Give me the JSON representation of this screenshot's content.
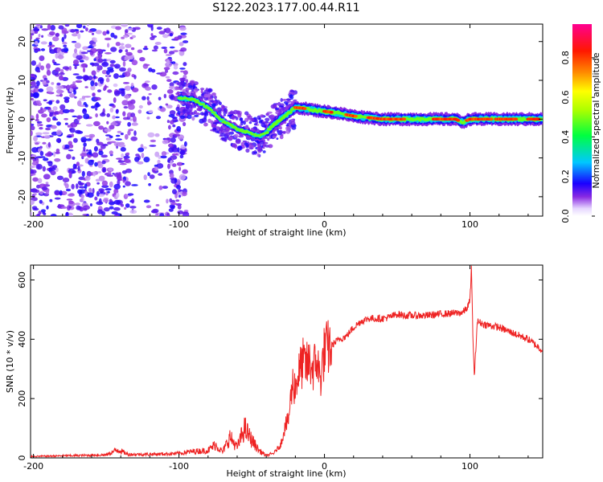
{
  "title": "S122.2023.177.00.44.R11",
  "chart_data": [
    {
      "type": "heatmap",
      "xlabel": "Height of straight line (km)",
      "ylabel": "Frequency (Hz)",
      "xlim": [
        -202,
        150
      ],
      "ylim": [
        -25,
        24.5
      ],
      "xticks": [
        -200,
        -100,
        0,
        100
      ],
      "yticks": [
        -20,
        -10,
        0,
        10,
        20
      ],
      "colorbar": {
        "label": "Normalized spectral amplitude",
        "range": [
          0,
          0.97
        ],
        "ticks": [
          "0.0",
          "0.2",
          "0.4",
          "0.6",
          "0.8"
        ]
      },
      "ridge": {
        "x": [
          -100,
          -90,
          -80,
          -70,
          -60,
          -52,
          -45,
          -40,
          -35,
          -30,
          -25,
          -20,
          -15,
          -10,
          -5,
          0,
          10,
          20,
          40,
          60,
          80,
          90,
          95,
          100,
          120,
          150
        ],
        "frequency_hz": [
          5.5,
          5.0,
          3.0,
          -0.5,
          -2.5,
          -3.5,
          -4.5,
          -3.5,
          -1.5,
          0,
          1.5,
          3,
          2.8,
          2.5,
          2.2,
          2,
          1.5,
          0.8,
          0,
          0,
          0,
          0,
          -0.8,
          0,
          0,
          0
        ]
      }
    },
    {
      "type": "line",
      "xlabel": "Height of straight line (km)",
      "ylabel": "SNR (10 * v/v)",
      "xlim": [
        -202,
        150
      ],
      "ylim": [
        0,
        650
      ],
      "xticks": [
        -200,
        -100,
        0,
        100
      ],
      "yticks": [
        0,
        200,
        400,
        600
      ],
      "color": "#ee2222",
      "series": [
        {
          "x": [
            -202,
            -190,
            -170,
            -150,
            -142,
            -135,
            -120,
            -100,
            -90,
            -80,
            -75,
            -70,
            -65,
            -60,
            -55,
            -50,
            -45,
            -40,
            -35,
            -30,
            -27,
            -25,
            -22,
            -20,
            -18,
            -15,
            -12,
            -10,
            -8,
            -5,
            -3,
            0,
            5,
            10,
            15,
            20,
            25,
            30,
            35,
            40,
            45,
            50,
            55,
            60,
            70,
            80,
            90,
            95,
            98,
            100,
            101,
            102,
            103,
            105,
            110,
            120,
            130,
            140,
            150
          ],
          "y": [
            5,
            6,
            8,
            10,
            28,
            12,
            12,
            15,
            22,
            25,
            45,
            20,
            70,
            35,
            100,
            60,
            25,
            8,
            15,
            45,
            110,
            120,
            250,
            240,
            280,
            320,
            310,
            320,
            300,
            330,
            260,
            360,
            380,
            400,
            410,
            440,
            460,
            470,
            470,
            470,
            475,
            485,
            480,
            480,
            480,
            485,
            488,
            490,
            505,
            530,
            640,
            420,
            270,
            460,
            450,
            440,
            420,
            400,
            362
          ]
        }
      ]
    }
  ]
}
